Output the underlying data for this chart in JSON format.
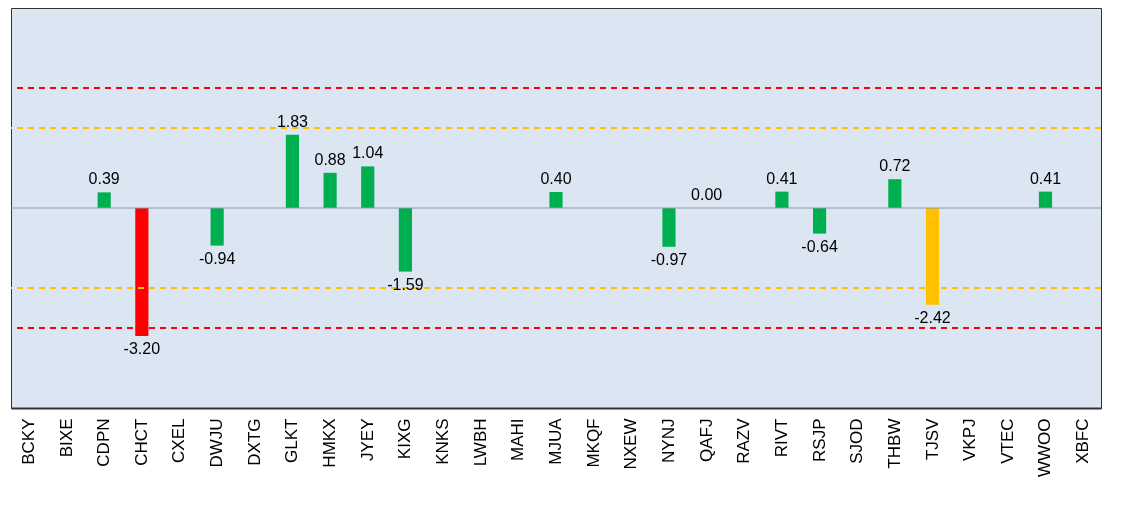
{
  "chart_data": {
    "type": "bar",
    "categories": [
      "BCKY",
      "BIXE",
      "CDPN",
      "CHCT",
      "CXEL",
      "DWJU",
      "DXTG",
      "GLKT",
      "HMKX",
      "JYEY",
      "KIXG",
      "KNKS",
      "LWBH",
      "MAHI",
      "MJUA",
      "MKQF",
      "NXEW",
      "NYNJ",
      "QAFJ",
      "RAZV",
      "RIVT",
      "RSJP",
      "SJOD",
      "THBW",
      "TJSV",
      "VKPJ",
      "VTEC",
      "WWOO",
      "XBFC"
    ],
    "values": [
      null,
      null,
      0.39,
      -3.2,
      null,
      -0.94,
      null,
      1.83,
      0.88,
      1.04,
      -1.59,
      null,
      null,
      null,
      0.4,
      null,
      null,
      -0.97,
      0.0,
      null,
      0.41,
      -0.64,
      null,
      0.72,
      -2.42,
      null,
      null,
      0.41,
      null
    ],
    "colors": [
      "#00b050",
      "#00b050",
      "#00b050",
      "#ff0000",
      "#00b050",
      "#00b050",
      "#00b050",
      "#00b050",
      "#00b050",
      "#00b050",
      "#00b050",
      "#00b050",
      "#00b050",
      "#00b050",
      "#00b050",
      "#00b050",
      "#00b050",
      "#00b050",
      "#00b050",
      "#00b050",
      "#00b050",
      "#00b050",
      "#00b050",
      "#00b050",
      "#ffc000",
      "#00b050",
      "#00b050",
      "#00b050",
      "#00b050"
    ],
    "value_labels": [
      null,
      null,
      "0.39",
      "-3.20",
      null,
      "-0.94",
      null,
      "1.83",
      "0.88",
      "1.04",
      "-1.59",
      null,
      null,
      null,
      "0.40",
      null,
      null,
      "-0.97",
      "0.00",
      null,
      "0.41",
      "-0.64",
      null,
      "0.72",
      "-2.42",
      null,
      null,
      "0.41",
      null
    ],
    "ylim": [
      -5,
      5
    ],
    "tick_labels": "x",
    "ref_lines": [
      {
        "axis": "y",
        "value": 3,
        "color": "#ff0000",
        "line_style": "dashed"
      },
      {
        "axis": "y",
        "value": 2,
        "color": "#ffc000",
        "line_style": "dashed"
      },
      {
        "axis": "y",
        "value": 0,
        "color": "#8c9aa8",
        "line_style": "solid"
      },
      {
        "axis": "y",
        "value": -2,
        "color": "#ffc000",
        "line_style": "dashed"
      },
      {
        "axis": "y",
        "value": -3,
        "color": "#ff0000",
        "line_style": "dashed"
      }
    ]
  }
}
